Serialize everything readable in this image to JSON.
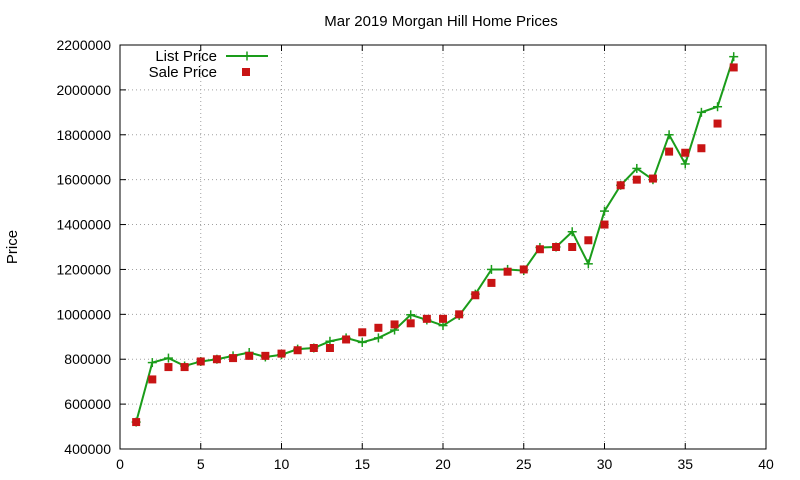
{
  "chart_data": {
    "type": "line",
    "title": "Mar 2019 Morgan Hill Home Prices",
    "xlabel": "",
    "ylabel": "Price",
    "xlim": [
      0,
      40
    ],
    "ylim": [
      400000,
      2200000
    ],
    "xticks": [
      0,
      5,
      10,
      15,
      20,
      25,
      30,
      35,
      40
    ],
    "yticks": [
      400000,
      600000,
      800000,
      1000000,
      1200000,
      1400000,
      1600000,
      1800000,
      2000000,
      2200000
    ],
    "grid": true,
    "legend_position": "top-left",
    "series": [
      {
        "name": "List Price",
        "style": "line+cross",
        "color": "#1a9c1a",
        "x": [
          1,
          2,
          3,
          4,
          5,
          6,
          7,
          8,
          9,
          10,
          11,
          12,
          13,
          14,
          15,
          16,
          17,
          18,
          19,
          20,
          21,
          22,
          23,
          24,
          25,
          26,
          27,
          28,
          29,
          30,
          31,
          32,
          33,
          34,
          35,
          36,
          37,
          38
        ],
        "y": [
          520000,
          785000,
          805000,
          770000,
          790000,
          800000,
          815000,
          830000,
          810000,
          820000,
          845000,
          850000,
          880000,
          895000,
          875000,
          895000,
          930000,
          998000,
          975000,
          950000,
          995000,
          1090000,
          1200000,
          1200000,
          1195000,
          1298000,
          1300000,
          1368000,
          1225000,
          1460000,
          1575000,
          1650000,
          1600000,
          1800000,
          1670000,
          1900000,
          1925000,
          2148000
        ]
      },
      {
        "name": "Sale Price",
        "style": "square",
        "color": "#c81414",
        "x": [
          1,
          2,
          3,
          4,
          5,
          6,
          7,
          8,
          9,
          10,
          11,
          12,
          13,
          14,
          15,
          16,
          17,
          18,
          19,
          20,
          21,
          22,
          23,
          24,
          25,
          26,
          27,
          28,
          29,
          30,
          31,
          32,
          33,
          34,
          35,
          36,
          37,
          38
        ],
        "y": [
          520000,
          710000,
          765000,
          765000,
          790000,
          800000,
          805000,
          815000,
          815000,
          825000,
          840000,
          850000,
          850000,
          888000,
          920000,
          940000,
          955000,
          960000,
          980000,
          980000,
          1000000,
          1085000,
          1140000,
          1190000,
          1200000,
          1290000,
          1300000,
          1300000,
          1330000,
          1400000,
          1575000,
          1600000,
          1605000,
          1725000,
          1720000,
          1740000,
          1850000,
          2100000
        ]
      }
    ]
  }
}
